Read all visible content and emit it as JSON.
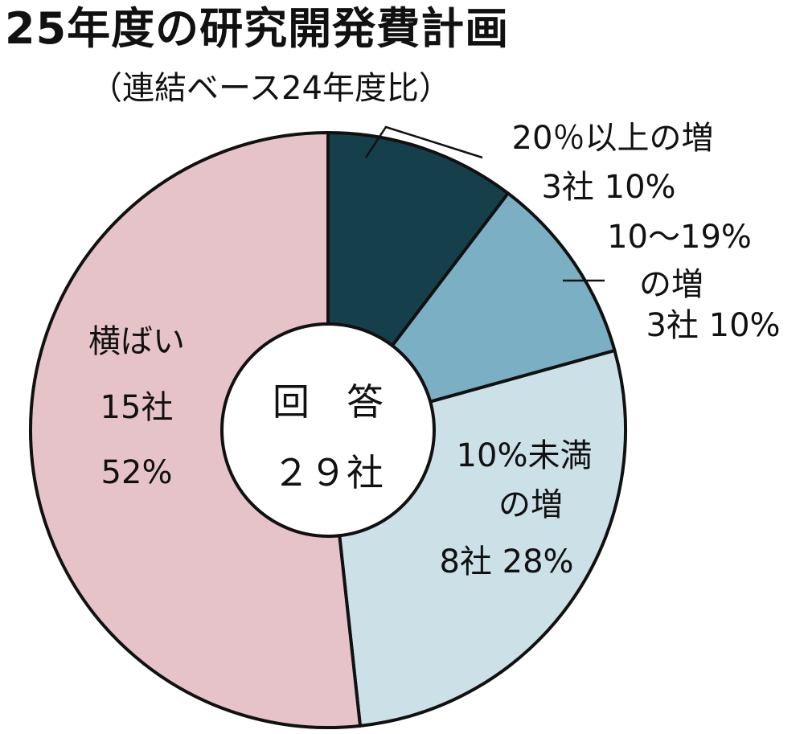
{
  "chart_data": {
    "type": "pie",
    "title": "25年度の研究開発費計画",
    "subtitle": "（連結ベース24年度比）",
    "center": {
      "line1": "回　答",
      "line2": "２９社"
    },
    "slices": [
      {
        "category": "20％以上の増",
        "companies": 3,
        "percent": 10,
        "color": "#163f4c",
        "label_lines": [
          "20％以上の増",
          "3社  10%"
        ]
      },
      {
        "category": "10〜19％の増",
        "companies": 3,
        "percent": 10,
        "color": "#7aafc4",
        "label_lines": [
          "10〜19%",
          "の増",
          "3社 10%"
        ]
      },
      {
        "category": "10%未満の増",
        "companies": 8,
        "percent": 28,
        "color": "#cce0e8",
        "label_lines": [
          "10%未満",
          "の増",
          "8社 28%"
        ]
      },
      {
        "category": "横ばい",
        "companies": 15,
        "percent": 52,
        "color": "#e6c3c8",
        "label_lines": [
          "横ばい",
          "15社",
          "52%"
        ]
      }
    ]
  }
}
